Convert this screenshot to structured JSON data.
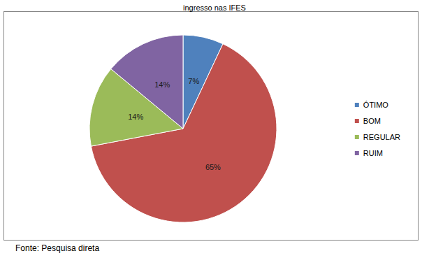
{
  "chart_data": {
    "type": "pie",
    "title": "ingresso nas IFES",
    "categories": [
      "ÓTIMO",
      "BOM",
      "REGULAR",
      "RUIM"
    ],
    "values": [
      7,
      65,
      14,
      14
    ],
    "value_labels": [
      "7%",
      "65%",
      "14%",
      "14%"
    ],
    "colors": [
      "#4f81bd",
      "#c0504d",
      "#9bbb59",
      "#8064a2"
    ],
    "data_labels": true,
    "legend": "right",
    "annotations": [
      "Fonte: Pesquisa direta"
    ]
  }
}
